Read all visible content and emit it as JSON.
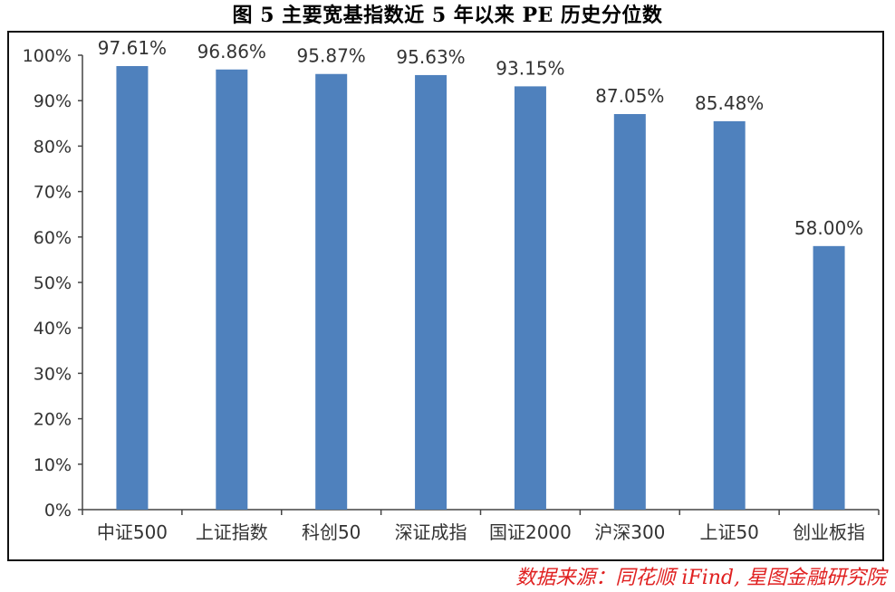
{
  "title": "图 5 主要宽基指数近 5 年以来 PE 历史分位数",
  "source": "数据来源：同花顺 iFind, 星图金融研究院",
  "colors": {
    "bar": "#4f81bd",
    "axis": "#444444",
    "text": "#333333",
    "source": "#e02020"
  },
  "chart_data": {
    "type": "bar",
    "title": "图 5 主要宽基指数近 5 年以来 PE 历史分位数",
    "xlabel": "",
    "ylabel": "",
    "categories": [
      "中证500",
      "上证指数",
      "科创50",
      "深证成指",
      "国证2000",
      "沪深300",
      "上证50",
      "创业板指"
    ],
    "values": [
      97.61,
      96.86,
      95.87,
      95.63,
      93.15,
      87.05,
      85.48,
      58.0
    ],
    "data_labels": [
      "97.61%",
      "96.86%",
      "95.87%",
      "95.63%",
      "93.15%",
      "87.05%",
      "85.48%",
      "58.00%"
    ],
    "ylim": [
      0,
      100
    ],
    "yticks": [
      0,
      10,
      20,
      30,
      40,
      50,
      60,
      70,
      80,
      90,
      100
    ],
    "ytick_labels": [
      "0%",
      "10%",
      "20%",
      "30%",
      "40%",
      "50%",
      "60%",
      "70%",
      "80%",
      "90%",
      "100%"
    ],
    "grid": false,
    "legend": "none"
  }
}
